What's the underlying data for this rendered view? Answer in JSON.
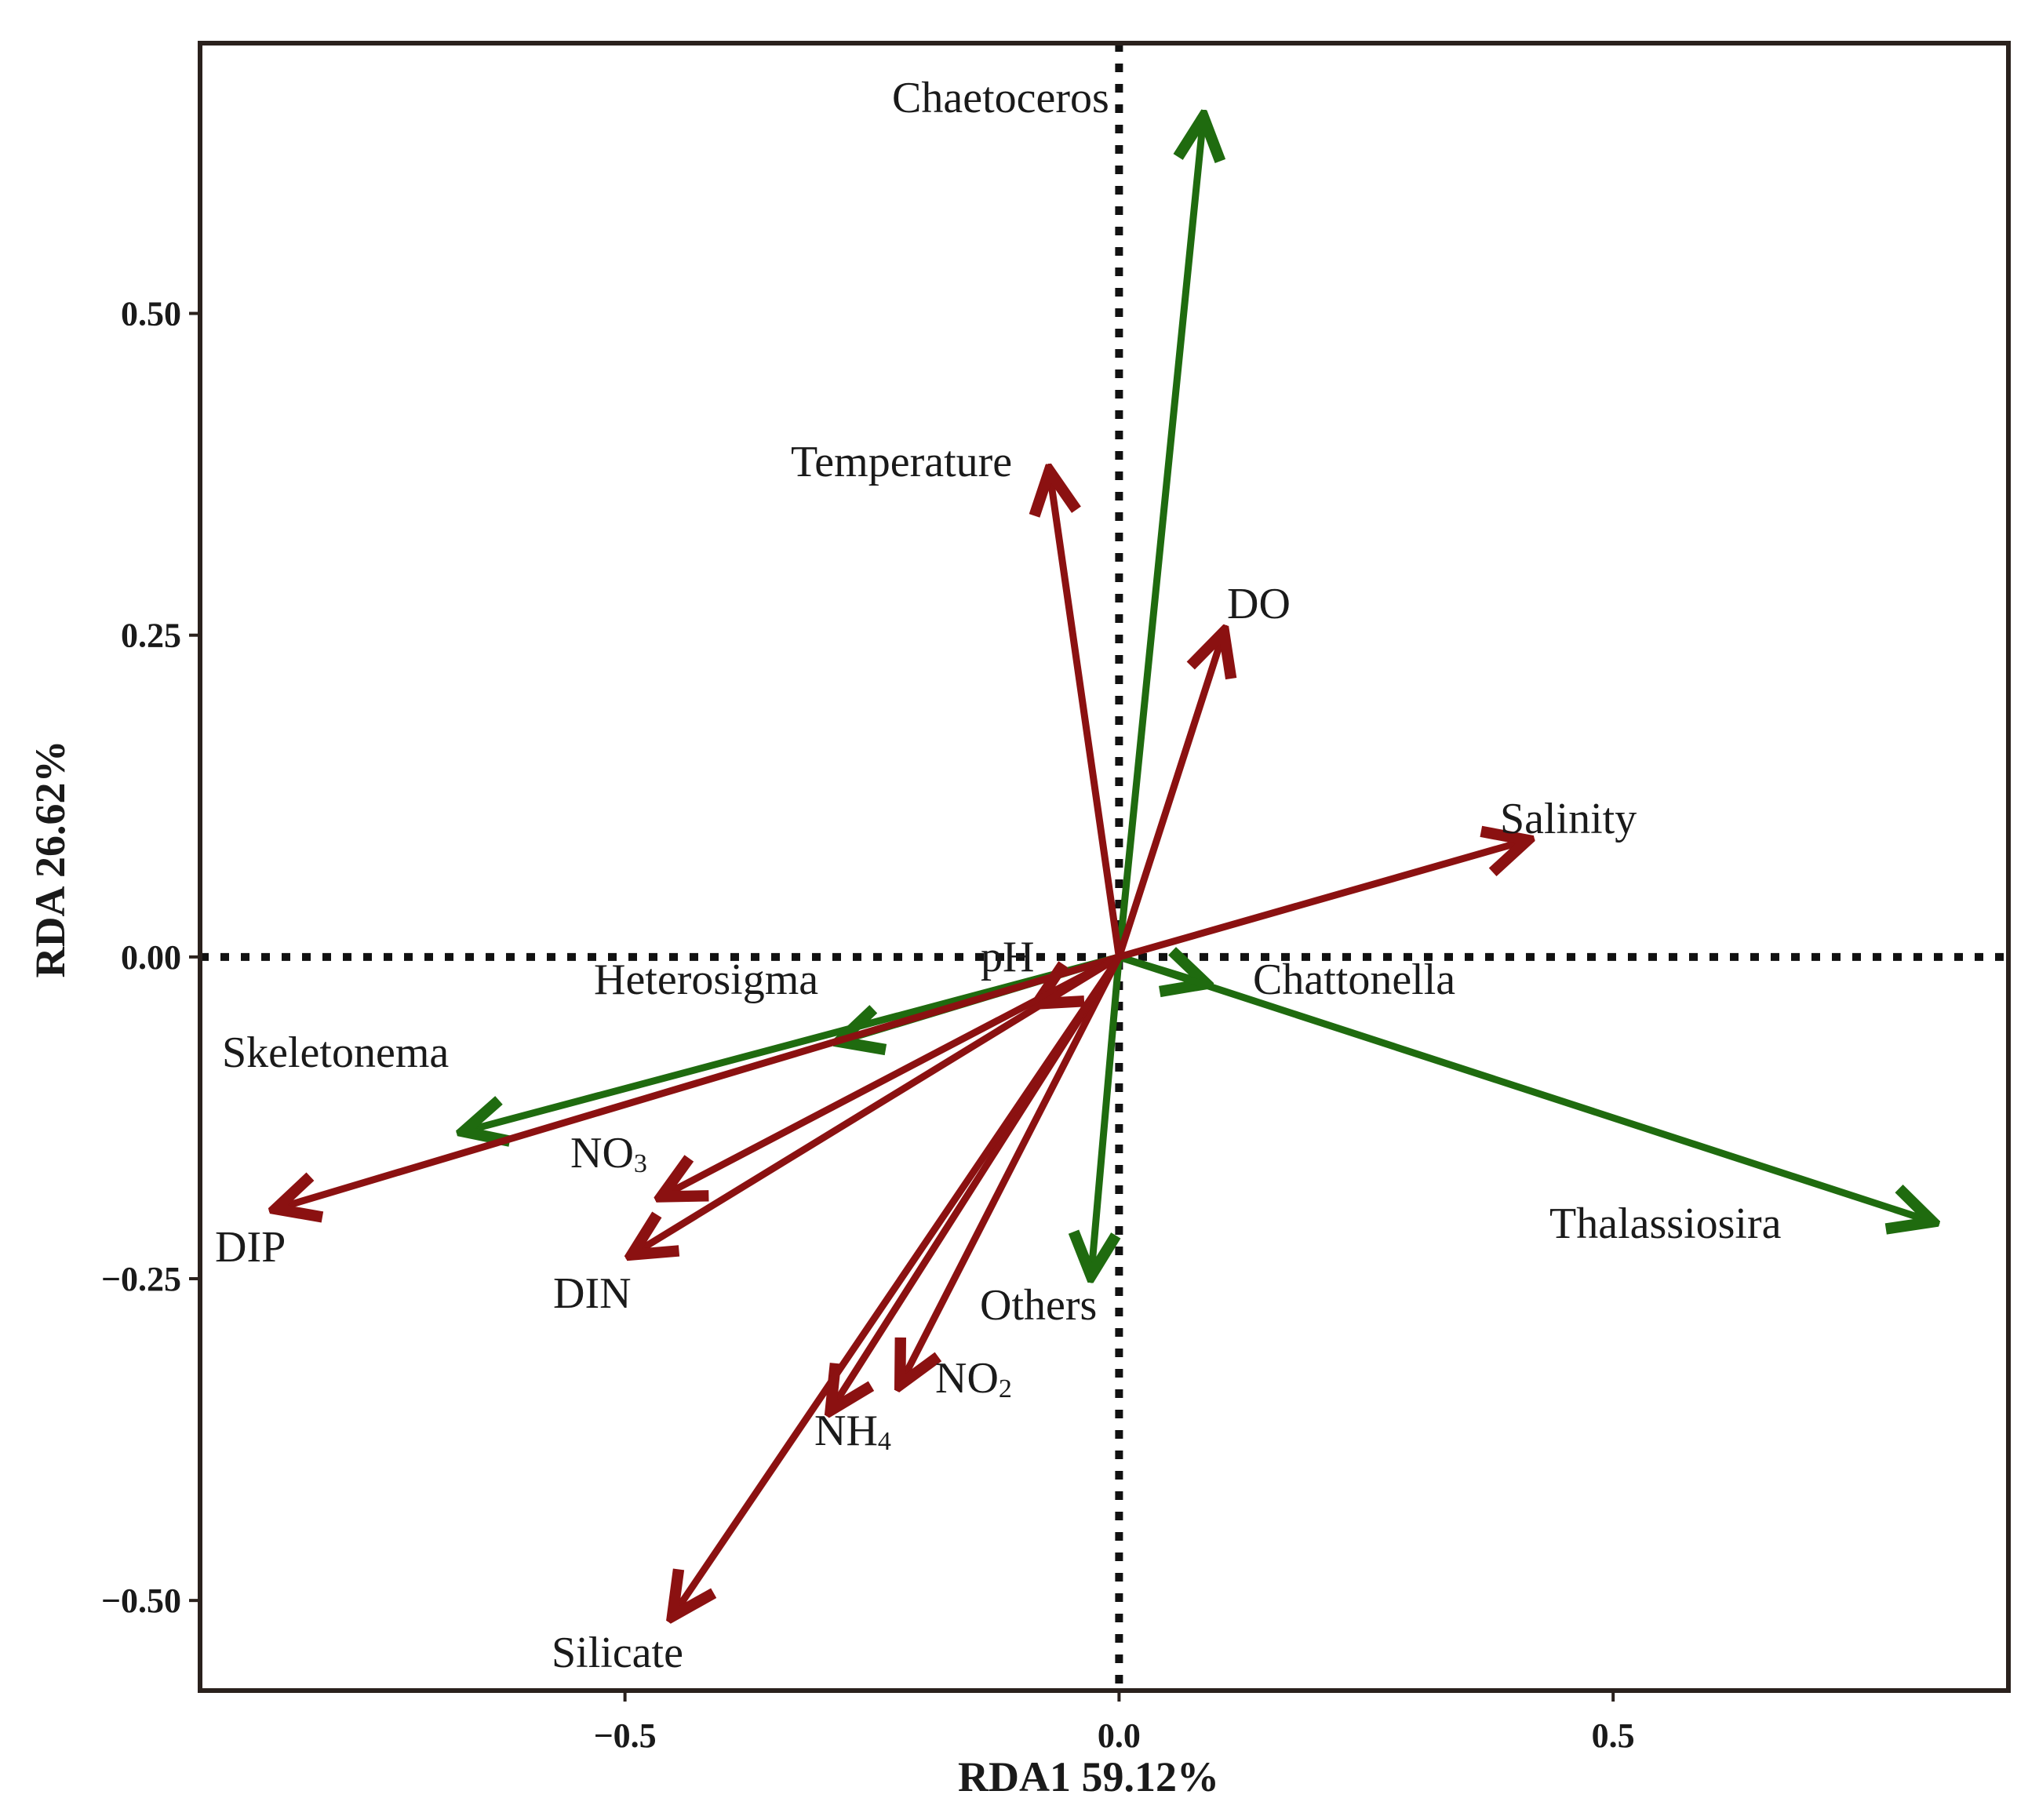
{
  "chart_data": {
    "type": "biplot",
    "title": "",
    "xlabel": "RDA1 59.12%",
    "ylabel": "RDA 26.62%",
    "xlim": [
      -0.93,
      0.9
    ],
    "ylim": [
      -0.57,
      0.71
    ],
    "xticks": [
      {
        "value": -0.5,
        "label": "−0.5"
      },
      {
        "value": 0.0,
        "label": "0.0"
      },
      {
        "value": 0.5,
        "label": "0.5"
      }
    ],
    "yticks": [
      {
        "value": 0.5,
        "label": "0.50"
      },
      {
        "value": 0.25,
        "label": "0.25"
      },
      {
        "value": 0.0,
        "label": "0.00"
      },
      {
        "value": -0.25,
        "label": "−0.25"
      },
      {
        "value": -0.5,
        "label": "−0.50"
      }
    ],
    "colors": {
      "species": "#1f6b0f",
      "environment": "#8b1111",
      "frame": "#2a211d",
      "zero_line": "#111111"
    },
    "species": [
      {
        "name": "Chaetoceros",
        "x": 0.085,
        "y": 0.65
      },
      {
        "name": "Heterosigma",
        "x": -0.28,
        "y": -0.065
      },
      {
        "name": "Skeletonema",
        "x": -0.66,
        "y": -0.135
      },
      {
        "name": "Chattonella",
        "x": 0.085,
        "y": -0.02
      },
      {
        "name": "Thalassiosira",
        "x": 0.82,
        "y": -0.205
      },
      {
        "name": "Others",
        "x": -0.028,
        "y": -0.245
      }
    ],
    "environment": [
      {
        "name": "Temperature",
        "x": -0.07,
        "y": 0.375
      },
      {
        "name": "DO",
        "x": 0.105,
        "y": 0.25
      },
      {
        "name": "Salinity",
        "x": 0.41,
        "y": 0.09
      },
      {
        "name": "pH",
        "x": -0.08,
        "y": -0.035
      },
      {
        "name": "DIP",
        "x": -0.85,
        "y": -0.195
      },
      {
        "name": "NO",
        "sub": "3",
        "x": -0.46,
        "y": -0.185
      },
      {
        "name": "DIN",
        "x": -0.49,
        "y": -0.23
      },
      {
        "name": "NO",
        "sub": "2",
        "x": -0.22,
        "y": -0.33
      },
      {
        "name": "NH",
        "sub": "4",
        "x": -0.29,
        "y": -0.35
      },
      {
        "name": "Silicate",
        "x": -0.45,
        "y": -0.51
      }
    ]
  }
}
